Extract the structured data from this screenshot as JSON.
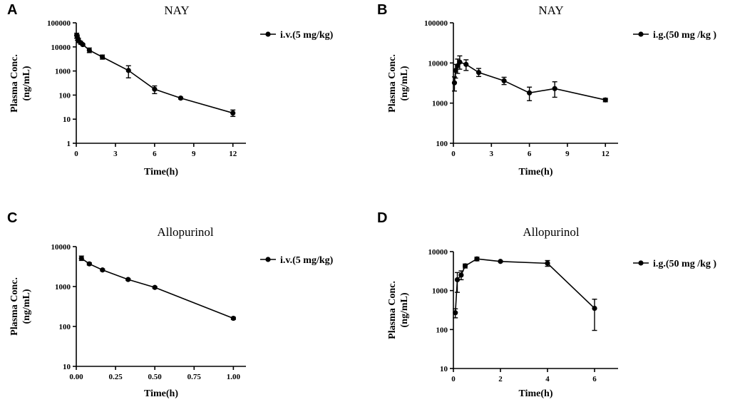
{
  "chart_data": [
    {
      "panel": "A",
      "type": "line",
      "title": "NAY",
      "xlabel": "Time(h)",
      "ylabel_line1": "Plasma Conc.",
      "ylabel_line2": "(ng/mL)",
      "yscale": "log",
      "xlim": [
        0,
        13
      ],
      "ylim": [
        1,
        100000
      ],
      "xticks": [
        0,
        3,
        6,
        9,
        12
      ],
      "xtick_labels": [
        "0",
        "3",
        "6",
        "9",
        "12"
      ],
      "yticks": [
        1,
        10,
        100,
        1000,
        10000,
        100000
      ],
      "ytick_labels": [
        "1",
        "10",
        "100",
        "1000",
        "10000",
        "100000"
      ],
      "legend": "i.v.(5 mg/kg)",
      "legend_position": "top-right",
      "series": [
        {
          "name": "i.v.(5 mg/kg)",
          "x": [
            0.033,
            0.083,
            0.167,
            0.33,
            0.5,
            1,
            2,
            4,
            6,
            8,
            12
          ],
          "y": [
            30000,
            25000,
            19000,
            15000,
            12500,
            7300,
            3800,
            1050,
            175,
            75,
            18
          ],
          "err_low": [
            23000,
            19000,
            15000,
            13000,
            11500,
            5800,
            3100,
            520,
            115,
            68,
            13
          ],
          "err_high": [
            37000,
            31000,
            23000,
            17000,
            13500,
            9000,
            4600,
            1650,
            240,
            82,
            24
          ]
        }
      ]
    },
    {
      "panel": "B",
      "type": "line",
      "title": "NAY",
      "xlabel": "Time(h)",
      "ylabel_line1": "Plasma Conc.",
      "ylabel_line2": "(ng/mL)",
      "yscale": "log",
      "xlim": [
        0,
        13
      ],
      "ylim": [
        100,
        100000
      ],
      "xticks": [
        0,
        3,
        6,
        9,
        12
      ],
      "xtick_labels": [
        "0",
        "3",
        "6",
        "9",
        "12"
      ],
      "yticks": [
        100,
        1000,
        10000,
        100000
      ],
      "ytick_labels": [
        "100",
        "1000",
        "10000",
        "100000"
      ],
      "legend": "i.g.(50 mg /kg )",
      "legend_position": "top-right",
      "series": [
        {
          "name": "i.g.(50 mg /kg )",
          "x": [
            0.083,
            0.167,
            0.33,
            0.5,
            1,
            2,
            4,
            6,
            8,
            12
          ],
          "y": [
            3200,
            6500,
            8500,
            10500,
            9200,
            5800,
            3600,
            1800,
            2300,
            1200
          ],
          "err_low": [
            2000,
            4200,
            5500,
            7000,
            6500,
            4600,
            2900,
            1150,
            1400,
            1080
          ],
          "err_high": [
            4500,
            9200,
            12500,
            15000,
            12000,
            7300,
            4400,
            2500,
            3400,
            1320
          ]
        }
      ]
    },
    {
      "panel": "C",
      "type": "line",
      "title": "Allopurinol",
      "xlabel": "Time(h)",
      "ylabel_line1": "Plasma Conc.",
      "ylabel_line2": "(ng/mL)",
      "yscale": "log",
      "xlim": [
        0,
        1.08
      ],
      "ylim": [
        10,
        10000
      ],
      "xticks": [
        0,
        0.25,
        0.5,
        0.75,
        1.0
      ],
      "xtick_labels": [
        "0.00",
        "0.25",
        "0.50",
        "0.75",
        "1.00"
      ],
      "yticks": [
        10,
        100,
        1000,
        10000
      ],
      "ytick_labels": [
        "10",
        "100",
        "1000",
        "10000"
      ],
      "legend": "i.v.(5 mg/kg)",
      "legend_position": "top-right",
      "series": [
        {
          "name": "i.v.(5 mg/kg)",
          "x": [
            0.033,
            0.083,
            0.167,
            0.33,
            0.5,
            1.0
          ],
          "y": [
            5100,
            3700,
            2600,
            1500,
            950,
            160
          ],
          "err_low": [
            4500,
            3450,
            2450,
            1420,
            900,
            150
          ],
          "err_high": [
            5800,
            3950,
            2750,
            1580,
            1000,
            170
          ]
        }
      ]
    },
    {
      "panel": "D",
      "type": "line",
      "title": "Allopurinol",
      "xlabel": "Time(h)",
      "ylabel_line1": "Plasma Conc.",
      "ylabel_line2": "(ng/mL)",
      "yscale": "log",
      "xlim": [
        0,
        7
      ],
      "ylim": [
        10,
        10000
      ],
      "xticks": [
        0,
        2,
        4,
        6
      ],
      "xtick_labels": [
        "0",
        "2",
        "4",
        "6"
      ],
      "yticks": [
        10,
        100,
        1000,
        10000
      ],
      "ytick_labels": [
        "10",
        "100",
        "1000",
        "10000"
      ],
      "legend": "i.g.(50 mg /kg )",
      "legend_position": "top-right",
      "series": [
        {
          "name": "i.g.(50 mg /kg )",
          "x": [
            0.083,
            0.167,
            0.33,
            0.5,
            1,
            2,
            4,
            6
          ],
          "y": [
            270,
            1900,
            2500,
            4300,
            6500,
            5600,
            5000,
            350
          ],
          "err_low": [
            200,
            900,
            1900,
            3800,
            5800,
            5400,
            4200,
            95
          ],
          "err_high": [
            340,
            2900,
            3200,
            4800,
            7200,
            5800,
            5900,
            600
          ]
        }
      ]
    }
  ]
}
